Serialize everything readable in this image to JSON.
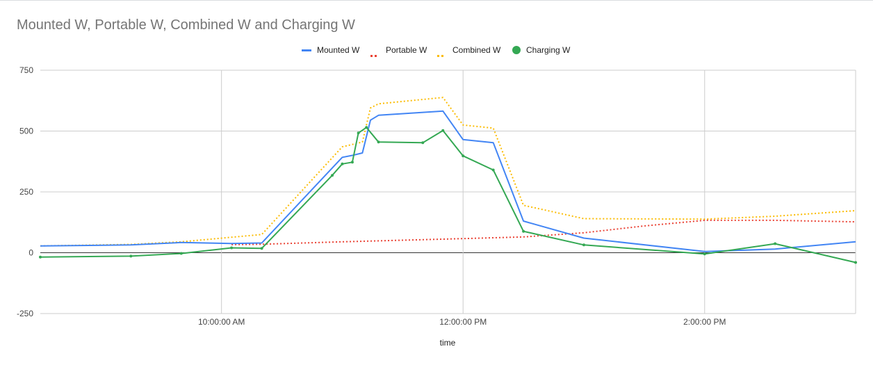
{
  "chart_data": {
    "type": "line",
    "title": "Mounted W, Portable W, Combined W and Charging W",
    "xlabel": "time",
    "ylabel": "",
    "ylim": [
      -250,
      750
    ],
    "yticks": [
      "750",
      "500",
      "250",
      "0",
      "-250"
    ],
    "ytick_values": [
      750,
      500,
      250,
      0,
      -250
    ],
    "xlim": [
      "8:30:00 AM",
      "3:15:00 PM"
    ],
    "xticks": [
      "10:00:00 AM",
      "12:00:00 PM",
      "2:00:00 PM"
    ],
    "xtick_values": [
      "10:00:00 AM",
      "12:00:00 PM",
      "2:00:00 PM"
    ],
    "grid": true,
    "legend_position": "top",
    "series": [
      {
        "name": "Mounted W",
        "color": "#4285f4",
        "style": "solid",
        "x": [
          "8:30:00 AM",
          "9:15:00 AM",
          "9:40:00 AM",
          "10:05:00 AM",
          "10:20:00 AM",
          "11:00:00 AM",
          "11:05:00 AM",
          "11:10:00 AM",
          "11:14:00 AM",
          "11:18:00 AM",
          "11:50:00 AM",
          "12:00:00 PM",
          "12:15:00 PM",
          "12:30:00 PM",
          "1:00:00 PM",
          "2:00:00 PM",
          "2:35:00 PM",
          "3:15:00 PM"
        ],
        "values": [
          28,
          32,
          42,
          38,
          40,
          392,
          400,
          410,
          545,
          565,
          582,
          465,
          452,
          130,
          60,
          5,
          15,
          45
        ]
      },
      {
        "name": "Portable W",
        "color": "#ea4335",
        "style": "dotted",
        "x": [
          "10:05:00 AM",
          "10:20:00 AM",
          "11:00:00 AM",
          "12:00:00 PM",
          "12:30:00 PM",
          "1:00:00 PM",
          "1:30:00 PM",
          "2:00:00 PM",
          "2:35:00 PM",
          "3:15:00 PM"
        ],
        "values": [
          33,
          35,
          45,
          58,
          65,
          82,
          110,
          133,
          133,
          127
        ]
      },
      {
        "name": "Combined W",
        "color": "#fbbc04",
        "style": "dotted",
        "x": [
          "8:30:00 AM",
          "9:15:00 AM",
          "9:40:00 AM",
          "10:20:00 AM",
          "11:00:00 AM",
          "11:10:00 AM",
          "11:14:00 AM",
          "11:18:00 AM",
          "11:50:00 AM",
          "12:00:00 PM",
          "12:15:00 PM",
          "12:30:00 PM",
          "1:00:00 PM",
          "2:00:00 PM",
          "2:35:00 PM",
          "3:15:00 PM"
        ],
        "values": [
          28,
          34,
          45,
          75,
          435,
          455,
          595,
          612,
          638,
          525,
          512,
          195,
          140,
          138,
          150,
          173
        ]
      },
      {
        "name": "Charging W",
        "color": "#34a853",
        "style": "solid-markers",
        "x": [
          "8:30:00 AM",
          "9:15:00 AM",
          "9:40:00 AM",
          "10:05:00 AM",
          "10:20:00 AM",
          "10:55:00 AM",
          "11:00:00 AM",
          "11:05:00 AM",
          "11:08:00 AM",
          "11:12:00 AM",
          "11:18:00 AM",
          "11:40:00 AM",
          "11:50:00 AM",
          "12:00:00 PM",
          "12:15:00 PM",
          "12:30:00 PM",
          "1:00:00 PM",
          "2:00:00 PM",
          "2:35:00 PM",
          "3:15:00 PM"
        ],
        "values": [
          -18,
          -14,
          -3,
          20,
          18,
          318,
          365,
          372,
          492,
          515,
          455,
          452,
          502,
          398,
          340,
          88,
          32,
          -5,
          37,
          -40
        ]
      }
    ]
  }
}
